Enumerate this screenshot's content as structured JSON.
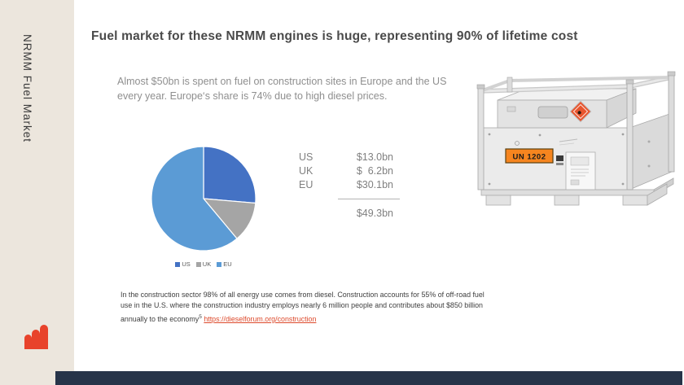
{
  "slide": {
    "sidebar": {
      "vertical_title": "NRMM Fuel Market",
      "bg_color": "#ECE6DD",
      "logo_color": "#E8432B"
    },
    "title": "Fuel market for these NRMM engines is huge, representing 90% of lifetime cost",
    "intro": "Almost $50bn is spent on fuel on construction sites in Europe and the US every year. Europe‘s share is 74% due to high diesel prices.",
    "chart_data": {
      "type": "pie",
      "categories": [
        "US",
        "UK",
        "EU"
      ],
      "values": [
        13.0,
        6.2,
        30.1
      ],
      "unit": "$bn",
      "total": 49.3,
      "colors": [
        "#4472C4",
        "#A5A5A5",
        "#5B9BD5"
      ],
      "legend_position": "bottom"
    },
    "table": {
      "rows": [
        {
          "label": "US",
          "value": "$13.0bn"
        },
        {
          "label": "UK",
          "value": "$  6.2bn"
        },
        {
          "label": "EU",
          "value": "$30.1bn"
        }
      ],
      "total": "$49.3bn"
    },
    "tank_image": {
      "name": "fuel-tank-container-photo",
      "label_text": "UN 1202"
    },
    "footnote": {
      "line1": "In the construction sector 98% of all energy use comes from diesel. Construction accounts for 55% of off-road fuel",
      "line2": "use in the U.S.  where the construction industry employs nearly 6 million people and contributes about $850 billion",
      "line3_prefix": "annually to the economy",
      "sup": "5",
      "link": "https://dieselforum.org/construction"
    },
    "bottom_bar_color": "#273449"
  }
}
